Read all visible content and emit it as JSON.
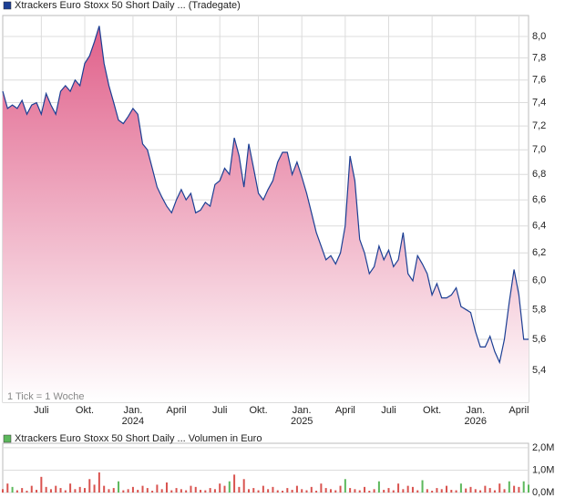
{
  "chart_data": [
    {
      "type": "area",
      "title": "Xtrackers Euro Stoxx 50 Short Daily ... (Tradegate)",
      "annotation": "1 Tick = 1 Woche",
      "color": "#1c3f94",
      "fill_color": "#e0608a",
      "log_scale": true,
      "grid": true,
      "categories": [
        null,
        null,
        null,
        null,
        null,
        null,
        null,
        null,
        "Juli",
        null,
        null,
        null,
        null,
        null,
        null,
        null,
        null,
        "Okt.",
        null,
        null,
        null,
        null,
        null,
        null,
        null,
        null,
        null,
        "Jan.",
        null,
        null,
        null,
        null,
        null,
        null,
        null,
        null,
        "April",
        null,
        null,
        null,
        null,
        null,
        null,
        null,
        null,
        "Juli",
        null,
        null,
        null,
        null,
        null,
        null,
        null,
        "Okt.",
        null,
        null,
        null,
        null,
        null,
        null,
        null,
        null,
        "Jan.",
        null,
        null,
        null,
        null,
        null,
        null,
        null,
        null,
        "April",
        null,
        null,
        null,
        null,
        null,
        null,
        null,
        null,
        "Juli",
        null,
        null,
        null,
        null,
        null,
        null,
        null,
        null,
        "Okt.",
        null,
        null,
        null,
        null,
        null,
        null,
        null,
        null,
        "Jan.",
        null,
        null,
        null,
        null,
        null,
        null,
        null,
        null,
        "April",
        null,
        null
      ],
      "year_labels": [
        null,
        null,
        null,
        null,
        null,
        null,
        null,
        null,
        null,
        null,
        null,
        null,
        null,
        null,
        null,
        null,
        null,
        null,
        null,
        null,
        null,
        null,
        null,
        null,
        null,
        null,
        null,
        "2024",
        null,
        null,
        null,
        null,
        null,
        null,
        null,
        null,
        null,
        null,
        null,
        null,
        null,
        null,
        null,
        null,
        null,
        null,
        null,
        null,
        null,
        null,
        null,
        null,
        null,
        null,
        null,
        null,
        null,
        null,
        null,
        null,
        null,
        null,
        "2025",
        null,
        null,
        null,
        null,
        null,
        null,
        null,
        null,
        null,
        null,
        null,
        null,
        null,
        null,
        null,
        null,
        null,
        null,
        null,
        null,
        null,
        null,
        null,
        null,
        null,
        null,
        null,
        null,
        null,
        null,
        null,
        null,
        null,
        null,
        null,
        "2026",
        null,
        null,
        null,
        null,
        null,
        null,
        null,
        null,
        null,
        null,
        null
      ],
      "values": [
        7.5,
        7.35,
        7.38,
        7.35,
        7.42,
        7.3,
        7.38,
        7.4,
        7.3,
        7.48,
        7.38,
        7.3,
        7.5,
        7.55,
        7.5,
        7.6,
        7.55,
        7.75,
        7.82,
        7.95,
        8.1,
        7.75,
        7.55,
        7.4,
        7.25,
        7.22,
        7.28,
        7.35,
        7.3,
        7.05,
        7.0,
        6.85,
        6.7,
        6.62,
        6.55,
        6.5,
        6.6,
        6.68,
        6.6,
        6.65,
        6.5,
        6.52,
        6.58,
        6.55,
        6.72,
        6.75,
        6.85,
        6.8,
        7.1,
        6.95,
        6.7,
        7.05,
        6.85,
        6.65,
        6.6,
        6.68,
        6.75,
        6.9,
        6.98,
        6.98,
        6.8,
        6.9,
        6.78,
        6.65,
        6.5,
        6.35,
        6.25,
        6.15,
        6.18,
        6.12,
        6.2,
        6.4,
        6.95,
        6.75,
        6.3,
        6.2,
        6.05,
        6.1,
        6.25,
        6.15,
        6.22,
        6.1,
        6.15,
        6.35,
        6.05,
        6.0,
        6.18,
        6.12,
        6.05,
        5.9,
        5.98,
        5.88,
        5.88,
        5.9,
        5.95,
        5.82,
        5.8,
        5.78,
        5.65,
        5.55,
        5.55,
        5.62,
        5.52,
        5.45,
        5.6,
        5.85,
        6.08,
        5.9,
        5.6,
        5.6
      ],
      "ylim": [
        5.2,
        8.2
      ],
      "yticks": [
        {
          "value": 5.4,
          "label": "5,4"
        },
        {
          "value": 5.6,
          "label": "5,6"
        },
        {
          "value": 5.8,
          "label": "5,8"
        },
        {
          "value": 6.0,
          "label": "6,0"
        },
        {
          "value": 6.2,
          "label": "6,2"
        },
        {
          "value": 6.4,
          "label": "6,4"
        },
        {
          "value": 6.6,
          "label": "6,6"
        },
        {
          "value": 6.8,
          "label": "6,8"
        },
        {
          "value": 7.0,
          "label": "7,0"
        },
        {
          "value": 7.2,
          "label": "7,2"
        },
        {
          "value": 7.4,
          "label": "7,4"
        },
        {
          "value": 7.6,
          "label": "7,6"
        },
        {
          "value": 7.8,
          "label": "7,8"
        },
        {
          "value": 8.0,
          "label": "8,0"
        }
      ]
    },
    {
      "type": "bar",
      "title": "Xtrackers Euro Stoxx 50 Short Daily ... Volumen in Euro",
      "legend_color": "#5cb85c",
      "grid": true,
      "values": [
        150000,
        400000,
        250000,
        100000,
        200000,
        80000,
        300000,
        120000,
        700000,
        250000,
        150000,
        300000,
        200000,
        100000,
        400000,
        150000,
        250000,
        200000,
        600000,
        350000,
        900000,
        300000,
        150000,
        200000,
        500000,
        100000,
        150000,
        250000,
        120000,
        300000,
        200000,
        80000,
        350000,
        150000,
        450000,
        100000,
        200000,
        150000,
        100000,
        300000,
        250000,
        120000,
        100000,
        200000,
        150000,
        400000,
        300000,
        500000,
        800000,
        250000,
        600000,
        150000,
        200000,
        100000,
        300000,
        150000,
        250000,
        100000,
        80000,
        200000,
        120000,
        300000,
        150000,
        100000,
        250000,
        80000,
        400000,
        200000,
        150000,
        100000,
        300000,
        600000,
        200000,
        150000,
        100000,
        250000,
        80000,
        150000,
        500000,
        120000,
        200000,
        100000,
        400000,
        150000,
        300000,
        250000,
        100000,
        550000,
        150000,
        80000,
        200000,
        150000,
        300000,
        120000,
        100000,
        400000,
        180000,
        250000,
        150000,
        100000,
        300000,
        200000,
        100000,
        400000,
        150000,
        500000,
        300000,
        250000,
        500000,
        350000
      ],
      "colors": [
        "#d9534f",
        "#d9534f",
        "#5cb85c",
        "#d9534f",
        "#d9534f",
        "#d9534f",
        "#d9534f",
        "#d9534f",
        "#d9534f",
        "#d9534f",
        "#d9534f",
        "#d9534f",
        "#d9534f",
        "#d9534f",
        "#d9534f",
        "#d9534f",
        "#d9534f",
        "#d9534f",
        "#d9534f",
        "#d9534f",
        "#d9534f",
        "#d9534f",
        "#d9534f",
        "#d9534f",
        "#5cb85c",
        "#d9534f",
        "#d9534f",
        "#d9534f",
        "#d9534f",
        "#d9534f",
        "#d9534f",
        "#d9534f",
        "#d9534f",
        "#d9534f",
        "#d9534f",
        "#d9534f",
        "#d9534f",
        "#d9534f",
        "#d9534f",
        "#d9534f",
        "#d9534f",
        "#d9534f",
        "#d9534f",
        "#d9534f",
        "#d9534f",
        "#d9534f",
        "#d9534f",
        "#5cb85c",
        "#d9534f",
        "#d9534f",
        "#d9534f",
        "#d9534f",
        "#d9534f",
        "#d9534f",
        "#d9534f",
        "#d9534f",
        "#d9534f",
        "#d9534f",
        "#d9534f",
        "#d9534f",
        "#d9534f",
        "#d9534f",
        "#d9534f",
        "#d9534f",
        "#d9534f",
        "#d9534f",
        "#d9534f",
        "#d9534f",
        "#d9534f",
        "#d9534f",
        "#d9534f",
        "#5cb85c",
        "#d9534f",
        "#d9534f",
        "#d9534f",
        "#d9534f",
        "#d9534f",
        "#d9534f",
        "#5cb85c",
        "#d9534f",
        "#d9534f",
        "#d9534f",
        "#d9534f",
        "#d9534f",
        "#d9534f",
        "#d9534f",
        "#d9534f",
        "#5cb85c",
        "#d9534f",
        "#d9534f",
        "#d9534f",
        "#d9534f",
        "#d9534f",
        "#d9534f",
        "#d9534f",
        "#5cb85c",
        "#d9534f",
        "#d9534f",
        "#d9534f",
        "#d9534f",
        "#d9534f",
        "#d9534f",
        "#d9534f",
        "#d9534f",
        "#d9534f",
        "#5cb85c",
        "#d9534f",
        "#d9534f",
        "#5cb85c",
        "#5cb85c"
      ],
      "ylim": [
        0,
        2200000
      ],
      "yticks": [
        {
          "value": 0,
          "label": "0,0M"
        },
        {
          "value": 1000000,
          "label": "1,0M"
        },
        {
          "value": 2000000,
          "label": "2,0M"
        }
      ]
    }
  ]
}
